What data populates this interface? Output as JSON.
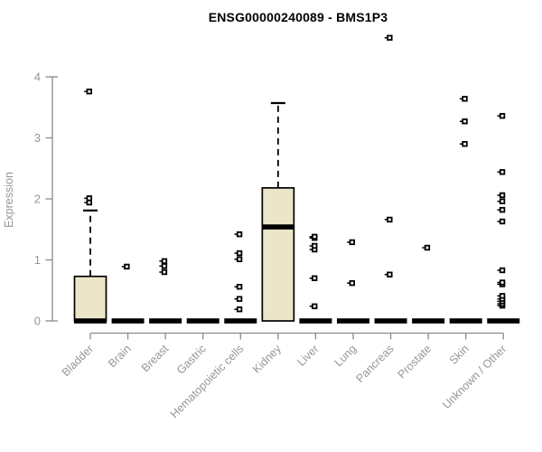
{
  "title": "ENSG00000240089 - BMS1P3",
  "chart_data": {
    "type": "boxplot",
    "title": "ENSG00000240089 - BMS1P3",
    "xlabel": "",
    "ylabel": "Expression",
    "ylim": [
      0,
      4
    ],
    "yticks": [
      0,
      1,
      2,
      3,
      4
    ],
    "grid": "off",
    "legend": "none",
    "categories": [
      "Bladder",
      "Brain",
      "Breast",
      "Gastric",
      "Hematopoietic cells",
      "Kidney",
      "Liver",
      "Lung",
      "Pancreas",
      "Prostate",
      "Skin",
      "Unknown / Other"
    ],
    "boxes": [
      {
        "category": "Bladder",
        "whisker_low": 0,
        "q1": 0,
        "median": 0,
        "q3": 0.73,
        "whisker_high": 1.81,
        "outliers": [
          1.94,
          2.01,
          3.76
        ]
      },
      {
        "category": "Brain",
        "whisker_low": 0,
        "q1": 0,
        "median": 0,
        "q3": 0,
        "whisker_high": 0,
        "outliers": [
          0.89
        ]
      },
      {
        "category": "Breast",
        "whisker_low": 0,
        "q1": 0,
        "median": 0,
        "q3": 0,
        "whisker_high": 0,
        "outliers": [
          0.8,
          0.9,
          0.98
        ]
      },
      {
        "category": "Gastric",
        "whisker_low": 0,
        "q1": 0,
        "median": 0,
        "q3": 0,
        "whisker_high": 0,
        "outliers": []
      },
      {
        "category": "Hematopoietic cells",
        "whisker_low": 0,
        "q1": 0,
        "median": 0,
        "q3": 0,
        "whisker_high": 0,
        "outliers": [
          0.19,
          0.36,
          0.56,
          1.01,
          1.11,
          1.42
        ]
      },
      {
        "category": "Kidney",
        "whisker_low": 0,
        "q1": 0,
        "median": 1.54,
        "q3": 2.18,
        "whisker_high": 3.57,
        "outliers": []
      },
      {
        "category": "Liver",
        "whisker_low": 0,
        "q1": 0,
        "median": 0,
        "q3": 0,
        "whisker_high": 0,
        "outliers": [
          0.24,
          0.7,
          1.17,
          1.23,
          1.36,
          1.38
        ]
      },
      {
        "category": "Lung",
        "whisker_low": 0,
        "q1": 0,
        "median": 0,
        "q3": 0,
        "whisker_high": 0,
        "outliers": [
          0.62,
          1.29
        ]
      },
      {
        "category": "Pancreas",
        "whisker_low": 0,
        "q1": 0,
        "median": 0,
        "q3": 0,
        "whisker_high": 0,
        "outliers": [
          0.76,
          1.66,
          4.64
        ]
      },
      {
        "category": "Prostate",
        "whisker_low": 0,
        "q1": 0,
        "median": 0,
        "q3": 0,
        "whisker_high": 0,
        "outliers": [
          1.2
        ]
      },
      {
        "category": "Skin",
        "whisker_low": 0,
        "q1": 0,
        "median": 0,
        "q3": 0,
        "whisker_high": 0,
        "outliers": [
          2.9,
          3.27,
          3.64
        ]
      },
      {
        "category": "Unknown / Other",
        "whisker_low": 0,
        "q1": 0,
        "median": 0,
        "q3": 0,
        "whisker_high": 0,
        "outliers": [
          0.25,
          0.28,
          0.32,
          0.36,
          0.41,
          0.6,
          0.63,
          0.83,
          1.63,
          1.82,
          1.96,
          2.06,
          2.44,
          3.36
        ]
      }
    ],
    "colors": {
      "box_fill": "#ECE6C9",
      "box_stroke": "#000000",
      "median": "#000000",
      "outlier_stroke": "#000000",
      "axis": "#8A8A8A",
      "tick_text": "#969696",
      "title_text": "#000000",
      "background": "#FFFFFF"
    }
  }
}
